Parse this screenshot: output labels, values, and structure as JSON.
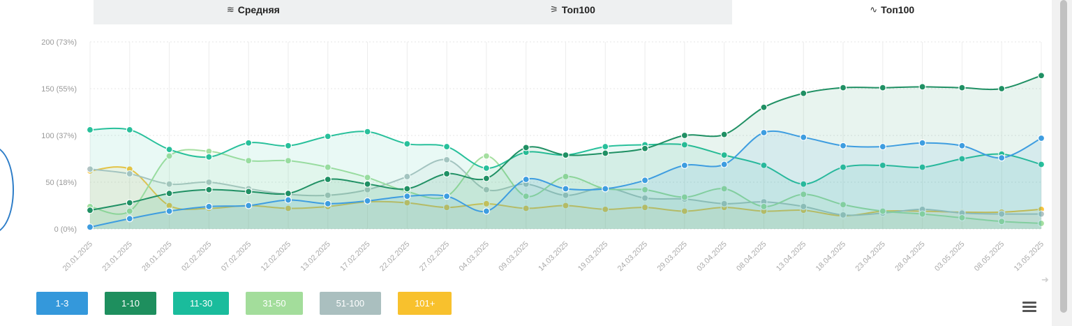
{
  "tabs": [
    {
      "label": "Средняя",
      "icon": "stack-lines-icon",
      "glyph": "≋",
      "active": false
    },
    {
      "label": "Топ100",
      "icon": "layers-icon",
      "glyph": "⚞",
      "active": false
    },
    {
      "label": "Топ100",
      "icon": "line-chart-icon",
      "glyph": "∿",
      "active": true
    }
  ],
  "chart_data": {
    "type": "line",
    "x": [
      "20.01.2025",
      "23.01.2025",
      "28.01.2025",
      "02.02.2025",
      "07.02.2025",
      "12.02.2025",
      "13.02.2025",
      "17.02.2025",
      "22.02.2025",
      "27.02.2025",
      "04.03.2025",
      "09.03.2025",
      "14.03.2025",
      "19.03.2025",
      "24.03.2025",
      "29.03.2025",
      "03.04.2025",
      "08.04.2025",
      "13.04.2025",
      "18.04.2025",
      "23.04.2025",
      "28.04.2025",
      "03.05.2025",
      "08.05.2025",
      "13.05.2025"
    ],
    "y_ticks": [
      "0 (0%)",
      "50 (18%)",
      "100 (37%)",
      "150 (55%)",
      "200 (73%)"
    ],
    "ylim": [
      0,
      200
    ],
    "grid": true,
    "legend_position": "bottom-left",
    "series": [
      {
        "name": "101+",
        "color": "#f9c33c",
        "values": [
          62,
          64,
          25,
          22,
          25,
          22,
          24,
          29,
          28,
          23,
          27,
          22,
          25,
          21,
          23,
          19,
          23,
          19,
          20,
          14,
          19,
          19,
          18,
          18,
          21
        ]
      },
      {
        "name": "51-100",
        "color": "#b2c4c4",
        "values": [
          64,
          59,
          48,
          50,
          43,
          37,
          36,
          42,
          56,
          74,
          42,
          48,
          36,
          44,
          33,
          32,
          27,
          29,
          24,
          15,
          17,
          21,
          17,
          16,
          16
        ]
      },
      {
        "name": "31-50",
        "color": "#a5dfa0",
        "values": [
          24,
          19,
          78,
          83,
          73,
          73,
          66,
          55,
          40,
          35,
          78,
          35,
          56,
          43,
          42,
          34,
          43,
          24,
          37,
          26,
          19,
          16,
          12,
          8,
          6
        ]
      },
      {
        "name": "11-30",
        "color": "#28c09b",
        "values": [
          106,
          106,
          85,
          77,
          92,
          89,
          99,
          104,
          91,
          88,
          65,
          82,
          79,
          88,
          90,
          90,
          79,
          68,
          48,
          66,
          68,
          66,
          75,
          80,
          69
        ]
      },
      {
        "name": "1-10",
        "color": "#209064",
        "values": [
          20,
          28,
          38,
          42,
          40,
          38,
          53,
          48,
          43,
          59,
          54,
          87,
          79,
          81,
          86,
          100,
          101,
          130,
          145,
          151,
          151,
          152,
          151,
          150,
          164
        ]
      },
      {
        "name": "1-3",
        "color": "#3e9de0",
        "values": [
          2,
          11,
          19,
          24,
          25,
          31,
          27,
          30,
          35,
          35,
          19,
          53,
          43,
          43,
          52,
          68,
          69,
          103,
          98,
          89,
          88,
          92,
          89,
          76,
          97
        ]
      }
    ]
  },
  "legend": [
    {
      "label": "1-3",
      "color": "#3498db"
    },
    {
      "label": "1-10",
      "color": "#1e8f5e"
    },
    {
      "label": "11-30",
      "color": "#1abc9c"
    },
    {
      "label": "31-50",
      "color": "#a3dd9b"
    },
    {
      "label": "51-100",
      "color": "#aabfbf"
    },
    {
      "label": "101+",
      "color": "#f8c12d"
    }
  ],
  "menu_icon": "hamburger-menu-icon"
}
